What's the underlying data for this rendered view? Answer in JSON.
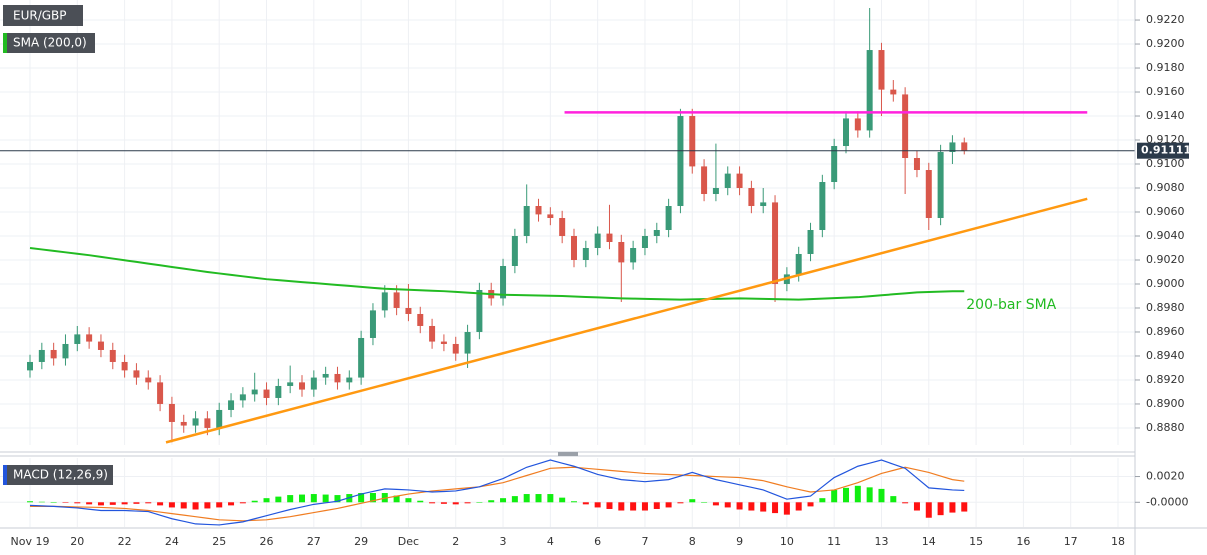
{
  "chart_data": [
    {
      "type": "candlestick",
      "title": "EUR/GBP",
      "categories": [
        "Nov 19",
        null,
        null,
        null,
        "20",
        null,
        null,
        null,
        "22",
        null,
        null,
        null,
        "24",
        null,
        null,
        null,
        "25",
        null,
        null,
        null,
        "26",
        null,
        null,
        null,
        "27",
        null,
        null,
        null,
        "29",
        null,
        null,
        null,
        "Dec",
        null,
        null,
        null,
        "2",
        null,
        null,
        null,
        "3",
        null,
        null,
        null,
        "4",
        null,
        null,
        null,
        "6",
        null,
        null,
        null,
        "7",
        null,
        null,
        null,
        "8",
        null,
        null,
        null,
        "9",
        null,
        null,
        null,
        "10",
        null,
        null,
        null,
        "11",
        null,
        null,
        null,
        "13",
        null,
        null,
        null,
        "14",
        null,
        null,
        null,
        "15",
        null,
        null,
        null,
        "16",
        null,
        null,
        null,
        "17",
        null,
        null,
        null,
        "18"
      ],
      "open": [
        0.8928,
        0.8935,
        0.8945,
        0.8938,
        0.895,
        0.8958,
        0.8952,
        0.8945,
        0.8935,
        0.8928,
        0.8922,
        0.8918,
        0.89,
        0.8885,
        0.8882,
        0.8888,
        0.888,
        0.8895,
        0.8903,
        0.8908,
        0.8912,
        0.8905,
        0.8915,
        0.8918,
        0.8912,
        0.8922,
        0.8925,
        0.8918,
        0.8922,
        0.8955,
        0.8978,
        0.8993,
        0.898,
        0.8975,
        0.8965,
        0.8952,
        0.895,
        0.8942,
        0.896,
        0.8995,
        0.8988,
        0.9015,
        0.904,
        0.9065,
        0.9058,
        0.9055,
        0.904,
        0.902,
        0.903,
        0.9042,
        0.9035,
        0.9018,
        0.903,
        0.904,
        0.9045,
        0.9065,
        0.914,
        0.9098,
        0.9075,
        0.908,
        0.9092,
        0.908,
        0.9065,
        0.9068,
        0.9,
        0.9008,
        0.9025,
        0.9045,
        0.9085,
        0.9115,
        0.9138,
        0.9128,
        0.9195,
        0.9162,
        0.9158,
        0.9105,
        0.9095,
        0.9055,
        0.911,
        0.9118,
        null,
        null,
        null,
        null,
        null,
        null,
        null,
        null,
        null,
        null,
        null,
        null,
        null
      ],
      "high": [
        0.8941,
        0.8951,
        0.8951,
        0.8958,
        0.8965,
        0.8964,
        0.8958,
        0.8951,
        0.8941,
        0.8934,
        0.8928,
        0.8924,
        0.8906,
        0.8891,
        0.8894,
        0.8894,
        0.8901,
        0.8909,
        0.8914,
        0.8926,
        0.8918,
        0.8921,
        0.8932,
        0.8924,
        0.8928,
        0.8931,
        0.8931,
        0.8928,
        0.8961,
        0.8984,
        0.8999,
        0.8999,
        0.9,
        0.8981,
        0.8971,
        0.8958,
        0.8956,
        0.8966,
        0.9001,
        0.9001,
        0.9021,
        0.9046,
        0.9083,
        0.9071,
        0.9064,
        0.9061,
        0.9046,
        0.9036,
        0.9048,
        0.9066,
        0.9041,
        0.9036,
        0.9046,
        0.9051,
        0.9071,
        0.9146,
        0.9146,
        0.9104,
        0.9117,
        0.9098,
        0.9098,
        0.9086,
        0.908,
        0.9074,
        0.9014,
        0.9031,
        0.9051,
        0.9091,
        0.9121,
        0.9144,
        0.9144,
        0.923,
        0.9201,
        0.917,
        0.9164,
        0.9111,
        0.9101,
        0.9116,
        0.9124,
        0.9122,
        null,
        null,
        null,
        null,
        null,
        null,
        null,
        null,
        null,
        null,
        null,
        null,
        null
      ],
      "low": [
        0.8922,
        0.8929,
        0.8932,
        0.8932,
        0.8944,
        0.8946,
        0.8939,
        0.8929,
        0.8922,
        0.8916,
        0.8912,
        0.8894,
        0.8868,
        0.8876,
        0.8876,
        0.8874,
        0.8874,
        0.8889,
        0.8897,
        0.8902,
        0.8899,
        0.8899,
        0.8909,
        0.8906,
        0.8906,
        0.8916,
        0.8912,
        0.8912,
        0.8916,
        0.8949,
        0.8972,
        0.8974,
        0.8969,
        0.8959,
        0.8946,
        0.8944,
        0.8936,
        0.893,
        0.8954,
        0.8982,
        0.8982,
        0.9009,
        0.9034,
        0.9052,
        0.9049,
        0.9034,
        0.9014,
        0.9014,
        0.9024,
        0.9029,
        0.8985,
        0.9012,
        0.9024,
        0.9034,
        0.9039,
        0.9059,
        0.9092,
        0.9069,
        0.9069,
        0.9074,
        0.9074,
        0.9059,
        0.9059,
        0.8985,
        0.8994,
        0.9002,
        0.9019,
        0.9039,
        0.9079,
        0.9109,
        0.9122,
        0.9122,
        0.914,
        0.9152,
        0.9075,
        0.9089,
        0.9045,
        0.9049,
        0.91,
        0.9108,
        null,
        null,
        null,
        null,
        null,
        null,
        null,
        null,
        null,
        null,
        null,
        null,
        null
      ],
      "close": [
        0.8935,
        0.8945,
        0.8938,
        0.895,
        0.8958,
        0.8952,
        0.8945,
        0.8935,
        0.8928,
        0.8922,
        0.8918,
        0.89,
        0.8885,
        0.8882,
        0.8888,
        0.888,
        0.8895,
        0.8903,
        0.8908,
        0.8912,
        0.8905,
        0.8915,
        0.8918,
        0.8912,
        0.8922,
        0.8925,
        0.8918,
        0.8922,
        0.8955,
        0.8978,
        0.8993,
        0.898,
        0.8975,
        0.8965,
        0.8952,
        0.895,
        0.8942,
        0.896,
        0.8995,
        0.8988,
        0.9015,
        0.904,
        0.9065,
        0.9058,
        0.9055,
        0.904,
        0.902,
        0.903,
        0.9042,
        0.9035,
        0.9018,
        0.903,
        0.904,
        0.9045,
        0.9065,
        0.914,
        0.9098,
        0.9075,
        0.908,
        0.9092,
        0.908,
        0.9065,
        0.9068,
        0.9,
        0.9008,
        0.9025,
        0.9045,
        0.9085,
        0.9115,
        0.9138,
        0.9128,
        0.9195,
        0.9162,
        0.9158,
        0.9105,
        0.9095,
        0.9055,
        0.911,
        0.9118,
        0.9111,
        null,
        null,
        null,
        null,
        null,
        null,
        null,
        null,
        null,
        null,
        null,
        null,
        null
      ],
      "up_color": "#3a9a78",
      "down_color": "#d9574b",
      "series": [
        {
          "name": "SMA (200,0)",
          "color": "#22bb22",
          "values": [
            0.903,
            0.90288,
            0.90276,
            0.90264,
            0.90252,
            0.9024,
            0.90226,
            0.90212,
            0.90198,
            0.90184,
            0.9017,
            0.90156,
            0.90142,
            0.90128,
            0.90114,
            0.901,
            0.90088,
            0.90076,
            0.90064,
            0.90052,
            0.9004,
            0.90032,
            0.90024,
            0.90016,
            0.90008,
            0.9,
            0.89992,
            0.89984,
            0.89976,
            0.89968,
            0.8996,
            0.89956,
            0.89952,
            0.89948,
            0.89944,
            0.8994,
            0.89934,
            0.89928,
            0.89922,
            0.89916,
            0.8991,
            0.89908,
            0.89906,
            0.89904,
            0.89902,
            0.899,
            0.89896,
            0.89892,
            0.89888,
            0.89884,
            0.8988,
            0.89878,
            0.89876,
            0.89874,
            0.89872,
            0.8987,
            0.89872,
            0.89874,
            0.89876,
            0.89878,
            0.8988,
            0.89878,
            0.89876,
            0.89874,
            0.89872,
            0.8987,
            0.89874,
            0.89878,
            0.89882,
            0.89886,
            0.8989,
            0.89898,
            0.89906,
            0.89914,
            0.89922,
            0.8993,
            0.89933,
            0.89936,
            0.89939,
            0.8994,
            null,
            null,
            null,
            null,
            null,
            null,
            null,
            null,
            null,
            null,
            null,
            null,
            null
          ]
        }
      ],
      "sma_annotation": "200-bar SMA",
      "trend_lines": [
        {
          "color": "#ff22dd",
          "x": [
            45.2,
            89.4
          ],
          "y": [
            0.9143,
            0.9143
          ]
        },
        {
          "color": "#ff9911",
          "x": [
            11.5,
            89.4
          ],
          "y": [
            0.8868,
            0.9071
          ]
        }
      ],
      "last_price": 0.91111,
      "ylim": [
        0.88658,
        0.92367
      ],
      "yticks": [
        {
          "value": 0.888,
          "label": "0.8880"
        },
        {
          "value": 0.89,
          "label": "0.8900"
        },
        {
          "value": 0.892,
          "label": "0.8920"
        },
        {
          "value": 0.894,
          "label": "0.8940"
        },
        {
          "value": 0.896,
          "label": "0.8960"
        },
        {
          "value": 0.898,
          "label": "0.8980"
        },
        {
          "value": 0.9,
          "label": "0.9000"
        },
        {
          "value": 0.902,
          "label": "0.9020"
        },
        {
          "value": 0.904,
          "label": "0.9040"
        },
        {
          "value": 0.906,
          "label": "0.9060"
        },
        {
          "value": 0.908,
          "label": "0.9080"
        },
        {
          "value": 0.91,
          "label": "0.9100"
        },
        {
          "value": 0.912,
          "label": "0.9120"
        },
        {
          "value": 0.914,
          "label": "0.9140"
        },
        {
          "value": 0.916,
          "label": "0.9160"
        },
        {
          "value": 0.918,
          "label": "0.9180"
        },
        {
          "value": 0.92,
          "label": "0.9200"
        },
        {
          "value": 0.922,
          "label": "0.9220"
        }
      ],
      "grid": true
    },
    {
      "type": "macd",
      "title": "MACD (12,26,9)",
      "macd": {
        "color": "#2255dd",
        "values": [
          -0.00024,
          -0.00028,
          -0.00032,
          -0.00038,
          -0.00044,
          -0.00054,
          -0.00064,
          -0.00064,
          -0.00064,
          -0.00068,
          -0.00072,
          -0.001,
          -0.00128,
          -0.00148,
          -0.00168,
          -0.00172,
          -0.00176,
          -0.00164,
          -0.00152,
          -0.00128,
          -0.00104,
          -0.0008,
          -0.00056,
          -0.00036,
          -0.00016,
          -4e-05,
          8e-05,
          0.00036,
          0.00064,
          0.00084,
          0.00104,
          0.001,
          0.00096,
          0.00088,
          0.0008,
          0.00084,
          0.00088,
          0.00104,
          0.0012,
          0.00152,
          0.00184,
          0.00228,
          0.00272,
          0.003,
          0.00328,
          0.00304,
          0.0028,
          0.00248,
          0.00216,
          0.00196,
          0.00176,
          0.00168,
          0.0016,
          0.00168,
          0.00176,
          0.00204,
          0.00232,
          0.00204,
          0.00176,
          0.00156,
          0.00136,
          0.00116,
          0.00096,
          0.0006,
          0.00024,
          0.00036,
          0.00048,
          0.0012,
          0.00192,
          0.00236,
          0.0028,
          0.00304,
          0.00328,
          0.00296,
          0.00264,
          0.00188,
          0.00112,
          0.00104,
          0.00096,
          0.00092,
          null,
          null,
          null,
          null,
          null,
          null,
          null,
          null,
          null,
          null,
          null,
          null,
          null
        ]
      },
      "signal": {
        "color": "#f07d22",
        "values": [
          -0.00032,
          -0.00032,
          -0.00032,
          -0.00034,
          -0.00036,
          -0.00038,
          -0.0004,
          -0.00044,
          -0.00048,
          -0.00056,
          -0.00064,
          -0.00076,
          -0.00088,
          -0.001,
          -0.00112,
          -0.00124,
          -0.00136,
          -0.0014,
          -0.00144,
          -0.0014,
          -0.00136,
          -0.00124,
          -0.00112,
          -0.00096,
          -0.0008,
          -0.00064,
          -0.00048,
          -0.00028,
          -8e-05,
          0.00012,
          0.00032,
          0.00048,
          0.00064,
          0.00076,
          0.00088,
          0.00096,
          0.00104,
          0.00112,
          0.0012,
          0.00136,
          0.00152,
          0.0018,
          0.00208,
          0.00236,
          0.00264,
          0.00268,
          0.00272,
          0.00264,
          0.00256,
          0.00248,
          0.0024,
          0.00232,
          0.00224,
          0.0022,
          0.00216,
          0.00212,
          0.00208,
          0.00204,
          0.002,
          0.00196,
          0.00192,
          0.0018,
          0.00168,
          0.00144,
          0.0012,
          0.001,
          0.0008,
          0.00088,
          0.00096,
          0.00124,
          0.00152,
          0.00188,
          0.00224,
          0.00248,
          0.00272,
          0.00252,
          0.00232,
          0.00204,
          0.00176,
          0.00164,
          null,
          null,
          null,
          null,
          null,
          null,
          null,
          null,
          null,
          null,
          null,
          null,
          null
        ]
      },
      "histogram": {
        "up_color": "#11ee11",
        "down_color": "#ff1111",
        "values": [
          8e-05,
          4e-05,
          0,
          -4e-05,
          -8e-05,
          -0.00016,
          -0.00024,
          -0.0002,
          -0.00016,
          -0.00012,
          -8e-05,
          -0.00024,
          -0.0004,
          -0.00048,
          -0.00056,
          -0.00048,
          -0.0004,
          -0.00024,
          -8e-05,
          0.00012,
          0.00032,
          0.00044,
          0.00056,
          0.0006,
          0.00064,
          0.0006,
          0.00056,
          0.00064,
          0.00072,
          0.00072,
          0.00072,
          0.00052,
          0.00032,
          0.00012,
          -8e-05,
          -0.00012,
          -0.00016,
          -8e-05,
          0,
          0.00016,
          0.00032,
          0.00048,
          0.00064,
          0.00064,
          0.00064,
          0.00036,
          8e-05,
          -0.00016,
          -0.0004,
          -0.00052,
          -0.00064,
          -0.00064,
          -0.00064,
          -0.00052,
          -0.0004,
          -8e-05,
          0.00024,
          0,
          -0.00024,
          -0.0004,
          -0.00056,
          -0.00064,
          -0.00072,
          -0.00084,
          -0.00096,
          -0.00064,
          -0.00032,
          0.00032,
          0.00096,
          0.00112,
          0.00128,
          0.00116,
          0.00104,
          0.00048,
          -8e-05,
          -0.00064,
          -0.0012,
          -0.001,
          -0.0008,
          -0.00072,
          null,
          null,
          null,
          null,
          null,
          null,
          null,
          null,
          null,
          null,
          null,
          null,
          null
        ]
      },
      "ylim": [
        -0.00192,
        0.00344
      ],
      "yticks": [
        {
          "value": 0.002,
          "label": "0.0020"
        },
        {
          "value": 0,
          "label": "-0.0000"
        }
      ],
      "grid": true
    }
  ]
}
